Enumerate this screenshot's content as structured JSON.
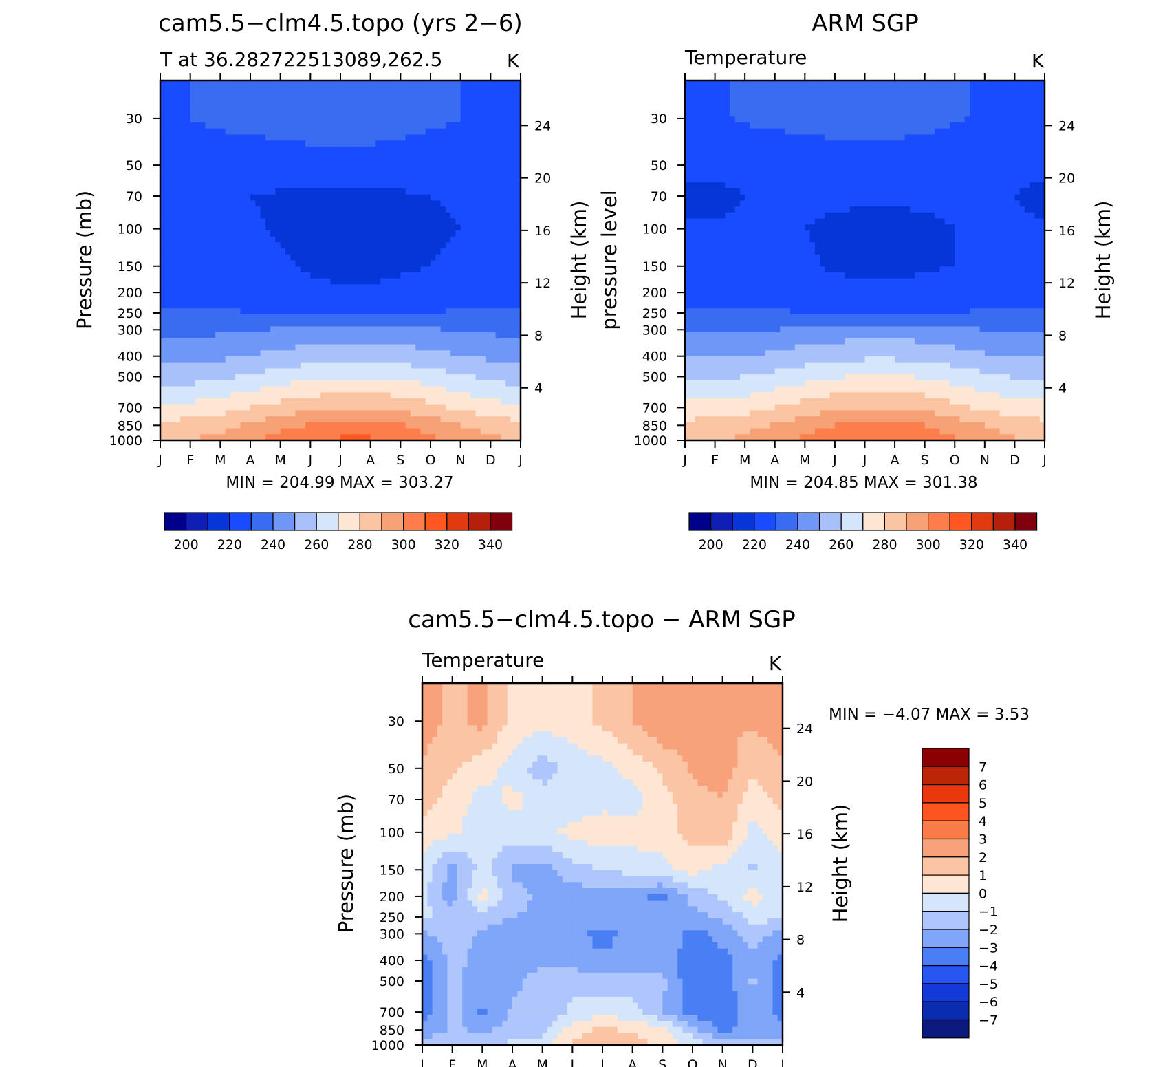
{
  "chart_data": [
    {
      "type": "heatmap",
      "title": "cam5.5−clm4.5.topo (yrs 2−6)",
      "left_subtitle": "T at 36.282722513089,262.5",
      "units": "K",
      "ylabel": "Pressure (mb)",
      "right_ylabel": "Height (km)",
      "x_ticks": [
        "J",
        "F",
        "M",
        "A",
        "M",
        "J",
        "J",
        "A",
        "S",
        "O",
        "N",
        "D",
        "J"
      ],
      "pressure_levels": [
        30,
        50,
        70,
        100,
        150,
        200,
        250,
        300,
        400,
        500,
        700,
        850,
        1000
      ],
      "height_ticks": [
        "24",
        "20",
        "16",
        "12",
        "8",
        "4"
      ],
      "min_max_text": "MIN = 204.99 MAX = 303.27",
      "colorbar_labels": [
        "200",
        "220",
        "240",
        "260",
        "280",
        "300",
        "320",
        "340"
      ],
      "field": [
        [
          218,
          220,
          222,
          223,
          224,
          225,
          225,
          225,
          224,
          222,
          220,
          218,
          218
        ],
        [
          214,
          214,
          214,
          215,
          215,
          216,
          216,
          216,
          215,
          214,
          214,
          214,
          214
        ],
        [
          211,
          210,
          210,
          210,
          209,
          208,
          208,
          208,
          209,
          210,
          211,
          211,
          211
        ],
        [
          212,
          212,
          212,
          211,
          209,
          208,
          207,
          207,
          207,
          208,
          210,
          211,
          212
        ],
        [
          214,
          214,
          214,
          213,
          211,
          209,
          208,
          208,
          209,
          210,
          212,
          213,
          214
        ],
        [
          216,
          216,
          216,
          215,
          213,
          212,
          211,
          211,
          212,
          213,
          215,
          216,
          216
        ],
        [
          221,
          221,
          221,
          220,
          219,
          218,
          218,
          218,
          219,
          220,
          221,
          221,
          221
        ],
        [
          227,
          227,
          228,
          229,
          231,
          233,
          234,
          234,
          233,
          231,
          229,
          228,
          227
        ],
        [
          237,
          237,
          238,
          240,
          243,
          245,
          247,
          247,
          245,
          243,
          240,
          238,
          237
        ],
        [
          245,
          246,
          248,
          251,
          255,
          258,
          259,
          259,
          258,
          255,
          251,
          248,
          245
        ],
        [
          262,
          263,
          266,
          270,
          274,
          277,
          279,
          279,
          277,
          273,
          268,
          264,
          262
        ],
        [
          273,
          274,
          277,
          282,
          287,
          291,
          293,
          293,
          291,
          286,
          280,
          276,
          273
        ],
        [
          279,
          280,
          283,
          288,
          294,
          298,
          302,
          302,
          298,
          292,
          286,
          282,
          279
        ]
      ]
    },
    {
      "type": "heatmap",
      "title": "ARM SGP",
      "left_subtitle": "Temperature",
      "units": "K",
      "ylabel": "pressure level",
      "right_ylabel": "Height (km)",
      "x_ticks": [
        "J",
        "F",
        "M",
        "A",
        "M",
        "J",
        "J",
        "A",
        "S",
        "O",
        "N",
        "D",
        "J"
      ],
      "pressure_levels": [
        30,
        50,
        70,
        100,
        150,
        200,
        250,
        300,
        400,
        500,
        700,
        850,
        1000
      ],
      "height_ticks": [
        "24",
        "20",
        "16",
        "12",
        "8",
        "4"
      ],
      "min_max_text": "MIN = 204.85 MAX = 301.38",
      "colorbar_labels": [
        "200",
        "220",
        "240",
        "260",
        "280",
        "300",
        "320",
        "340"
      ],
      "field": [
        [
          218,
          219,
          221,
          222,
          223,
          224,
          225,
          224,
          223,
          221,
          219,
          218,
          218
        ],
        [
          212,
          212,
          213,
          214,
          214,
          215,
          215,
          215,
          214,
          213,
          212,
          212,
          212
        ],
        [
          208,
          208,
          210,
          211,
          211,
          211,
          211,
          211,
          211,
          211,
          211,
          210,
          208
        ],
        [
          211,
          211,
          211,
          211,
          210,
          209,
          208,
          208,
          209,
          210,
          211,
          211,
          211
        ],
        [
          213,
          213,
          213,
          213,
          211,
          209,
          208,
          208,
          209,
          210,
          212,
          213,
          213
        ],
        [
          216,
          216,
          216,
          215,
          214,
          213,
          212,
          212,
          213,
          214,
          215,
          216,
          216
        ],
        [
          222,
          222,
          222,
          221,
          220,
          219,
          219,
          219,
          219,
          220,
          221,
          222,
          222
        ],
        [
          229,
          229,
          229,
          230,
          232,
          234,
          235,
          235,
          234,
          232,
          230,
          229,
          229
        ],
        [
          239,
          239,
          240,
          242,
          245,
          247,
          248,
          248,
          247,
          244,
          241,
          239,
          239
        ],
        [
          248,
          248,
          250,
          253,
          256,
          259,
          261,
          261,
          259,
          256,
          252,
          249,
          248
        ],
        [
          263,
          264,
          266,
          270,
          274,
          278,
          279,
          279,
          277,
          273,
          268,
          265,
          263
        ],
        [
          273,
          274,
          277,
          281,
          286,
          290,
          292,
          292,
          290,
          285,
          280,
          276,
          273
        ],
        [
          278,
          279,
          282,
          287,
          292,
          296,
          301,
          301,
          297,
          291,
          285,
          281,
          278
        ]
      ]
    },
    {
      "type": "heatmap",
      "title": "cam5.5−clm4.5.topo − ARM SGP",
      "left_subtitle": "Temperature",
      "units": "K",
      "ylabel": "Pressure (mb)",
      "right_ylabel": "Height (km)",
      "x_ticks": [
        "J",
        "F",
        "M",
        "A",
        "M",
        "J",
        "J",
        "A",
        "S",
        "O",
        "N",
        "D",
        "J"
      ],
      "pressure_levels": [
        30,
        50,
        70,
        100,
        150,
        200,
        250,
        300,
        400,
        500,
        700,
        850,
        1000
      ],
      "height_ticks": [
        "24",
        "20",
        "16",
        "12",
        "8",
        "4"
      ],
      "min_max_text": "MIN =   −4.07 MAX =     3.53",
      "colorbar_labels": [
        "7",
        "6",
        "5",
        "4",
        "3",
        "2",
        "1",
        "0",
        "−1",
        "−2",
        "−3",
        "−4",
        "−5",
        "−6",
        "−7"
      ],
      "field": [
        [
          2.6,
          1.6,
          2.4,
          0.6,
          0.4,
          0.6,
          1.2,
          2.0,
          2.9,
          2.4,
          2.0,
          2.2,
          2.6
        ],
        [
          1.8,
          1.2,
          0.4,
          -0.4,
          -1.6,
          -0.6,
          -0.3,
          0.4,
          1.2,
          2.2,
          2.6,
          1.2,
          1.8
        ],
        [
          1.4,
          0.6,
          -0.4,
          0.3,
          -0.4,
          -0.6,
          -0.4,
          -0.4,
          0.6,
          1.6,
          2.0,
          0.4,
          1.4
        ],
        [
          0.6,
          0.2,
          -0.6,
          -0.4,
          -0.3,
          0.3,
          0.6,
          0.4,
          0.6,
          1.4,
          1.8,
          -0.4,
          0.6
        ],
        [
          -0.4,
          -2.4,
          -0.6,
          -2.2,
          -2.4,
          -1.4,
          -1.0,
          -0.6,
          -0.4,
          0.4,
          -0.4,
          -1.2,
          -0.4
        ],
        [
          -0.6,
          -2.6,
          0.4,
          -1.6,
          -2.2,
          -2.6,
          -2.4,
          -2.8,
          -3.2,
          -1.6,
          -0.8,
          0.4,
          -0.6
        ],
        [
          -0.8,
          -1.2,
          -1.6,
          -2.0,
          -2.2,
          -2.4,
          -2.4,
          -2.4,
          -2.6,
          -2.4,
          -1.8,
          -0.6,
          -0.8
        ],
        [
          -2.2,
          -1.4,
          -2.2,
          -2.4,
          -2.4,
          -2.6,
          -3.4,
          -2.6,
          -2.2,
          -3.4,
          -2.6,
          -1.6,
          -2.2
        ],
        [
          -3.4,
          -1.6,
          -2.4,
          -2.4,
          -2.4,
          -2.6,
          -2.8,
          -2.6,
          -2.4,
          -3.6,
          -3.4,
          -2.2,
          -3.4
        ],
        [
          -3.8,
          -1.8,
          -2.6,
          -2.4,
          -1.4,
          -1.2,
          -1.6,
          -1.4,
          -1.8,
          -3.8,
          -3.6,
          -1.8,
          -3.8
        ],
        [
          -3.6,
          -1.6,
          -3.2,
          -1.8,
          -1.6,
          -0.8,
          -0.4,
          -0.6,
          -2.0,
          -3.4,
          -3.8,
          -2.4,
          -3.4
        ],
        [
          -2.6,
          -1.8,
          -2.2,
          -1.6,
          -1.4,
          0.6,
          1.2,
          0.8,
          0.4,
          -1.6,
          -3.2,
          -2.6,
          -2.4
        ],
        [
          -1.6,
          -1.4,
          -1.2,
          -0.8,
          -0.4,
          1.2,
          1.4,
          1.6,
          0.6,
          -0.4,
          -1.6,
          -1.8,
          -1.4
        ]
      ]
    }
  ],
  "colors": {
    "abs_palette": [
      "#00008b",
      "#0f1fb6",
      "#0636d8",
      "#1a4cff",
      "#3a6cf2",
      "#6f97f7",
      "#a9c1fb",
      "#d5e6fb",
      "#fde6d4",
      "#fbc5a4",
      "#f7a176",
      "#fb7e4c",
      "#ff5722",
      "#e03a0e",
      "#b5200c",
      "#80000d"
    ],
    "diff_palette": [
      "#0c1a80",
      "#0a2db0",
      "#1439d9",
      "#2856f2",
      "#4a7ff4",
      "#7fa6f8",
      "#aec6fb",
      "#d5e6fb",
      "#fde6d4",
      "#fbc4a4",
      "#f7a27a",
      "#fa7b47",
      "#fd5420",
      "#e8380c",
      "#bd2509",
      "#8b0000"
    ]
  }
}
